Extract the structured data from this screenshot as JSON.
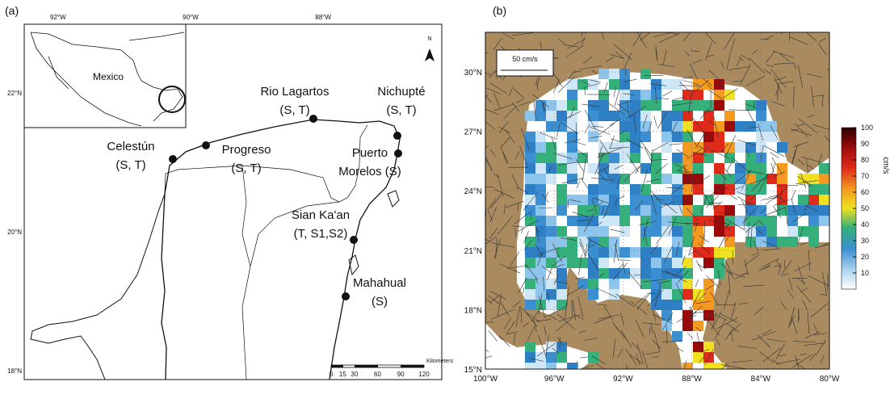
{
  "panels": [
    {
      "label": "(a)",
      "inset_label": "Mexico",
      "xlim": [
        -92.51,
        -86.21
      ],
      "ylim": [
        17.87,
        22.99
      ],
      "lon_ticks": [
        {
          "value": -92,
          "label": "92°W"
        },
        {
          "value": -90,
          "label": "90°W"
        },
        {
          "value": -88,
          "label": "88°W"
        }
      ],
      "lat_ticks": [
        {
          "value": 22,
          "label": "22°N"
        },
        {
          "value": 20,
          "label": "20°N"
        },
        {
          "value": 18,
          "label": "18°N"
        }
      ],
      "north": "N",
      "sites": [
        {
          "lines": [
            "Celestún",
            "(S, T)"
          ]
        },
        {
          "lines": [
            "Progreso",
            "(S, T)"
          ]
        },
        {
          "lines": [
            "Rio Lagartos",
            "(S, T)"
          ]
        },
        {
          "lines": [
            "Nichupté",
            "(S, T)"
          ]
        },
        {
          "lines": [
            "Puerto",
            "Morelos (S)"
          ]
        },
        {
          "lines": [
            "Sian Ka'an",
            "(T, S1,S2)"
          ]
        },
        {
          "lines": [
            "Mahahual",
            "(S)"
          ]
        }
      ],
      "scale_bar": {
        "unit": "Kilometers",
        "ticks": [
          0,
          15,
          30,
          60,
          90,
          120
        ]
      }
    },
    {
      "label": "(b)",
      "xlim": [
        -100,
        -80
      ],
      "ylim": [
        15,
        32
      ],
      "lon_ticks": [
        {
          "value": -100,
          "label": "100°W"
        },
        {
          "value": -96,
          "label": "96°W"
        },
        {
          "value": -92,
          "label": "92°W"
        },
        {
          "value": -88,
          "label": "88°W"
        },
        {
          "value": -84,
          "label": "84°W"
        },
        {
          "value": -80,
          "label": "80°W"
        }
      ],
      "lat_ticks": [
        {
          "value": 15,
          "label": "15°N"
        },
        {
          "value": 18,
          "label": "18°N"
        },
        {
          "value": 21,
          "label": "21°N"
        },
        {
          "value": 24,
          "label": "24°N"
        },
        {
          "value": 27,
          "label": "27°N"
        },
        {
          "value": 30,
          "label": "30°N"
        }
      ],
      "reference_vector": "50 cm/s",
      "colorbar": {
        "label": "cm/s",
        "lim": [
          0,
          100
        ],
        "ticks": [
          10,
          20,
          30,
          40,
          50,
          60,
          70,
          80,
          90,
          100
        ]
      }
    }
  ]
}
